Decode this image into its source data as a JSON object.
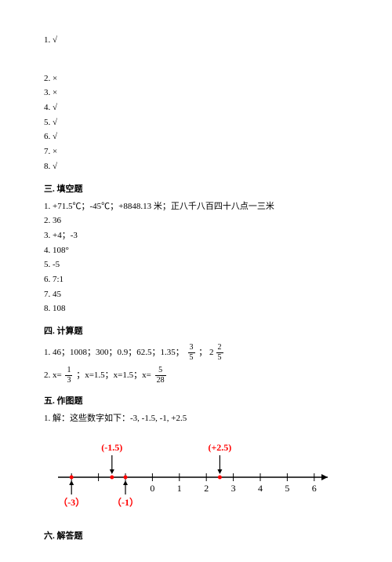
{
  "sec1": {
    "items": [
      "1. √",
      "2. ×",
      "3. ×",
      "4. √",
      "5. √",
      "6. √",
      "7. ×",
      "8. √"
    ]
  },
  "sec3": {
    "title": "三. 填空题",
    "items": [
      "1. +71.5℃；-45℃；+8848.13 米；正八千八百四十八点一三米",
      "2. 36",
      "3. +4；-3",
      "4. 108°",
      "5. -5",
      "6. 7:1",
      "7. 45",
      "8. 108"
    ]
  },
  "sec4": {
    "title": "四. 计算题",
    "row1_prefix": "1. 46；1008；300；0.9；62.5；1.35；",
    "row1_frac_a_num": "3",
    "row1_frac_a_den": "5",
    "row1_mid": "    ；    ",
    "row1_mixed_whole": "2",
    "row1_frac_b_num": "2",
    "row1_frac_b_den": "5",
    "row2_prefix": "2. x=",
    "row2_frac_a_num": "1",
    "row2_frac_a_den": "3",
    "row2_mid": "  ；x=1.5；x=1.5；x=",
    "row2_frac_b_num": "5",
    "row2_frac_b_den": "28"
  },
  "sec5": {
    "title": "五. 作图题",
    "text": "1. 解：这些数字如下：-3, -1.5, -1, +2.5",
    "diagram": {
      "colors": {
        "axis": "#000000",
        "accent": "#ff0000"
      },
      "x_start": -3.5,
      "x_end": 6.5,
      "tick_step": 1,
      "ticks": [
        -3,
        -2,
        -1,
        0,
        1,
        2,
        3,
        4,
        5,
        6
      ],
      "tick_labels": [
        "",
        "",
        "",
        "0",
        "1",
        "2",
        "3",
        "4",
        "5",
        "6"
      ],
      "top_points": [
        {
          "x": -1.5,
          "label": "(-1.5)"
        },
        {
          "x": 2.5,
          "label": "(+2.5)"
        }
      ],
      "bottom_points": [
        {
          "x": -3,
          "label": "（-3）"
        },
        {
          "x": -1,
          "label": "（-1）"
        }
      ]
    }
  },
  "sec6": {
    "title": "六. 解答题"
  }
}
